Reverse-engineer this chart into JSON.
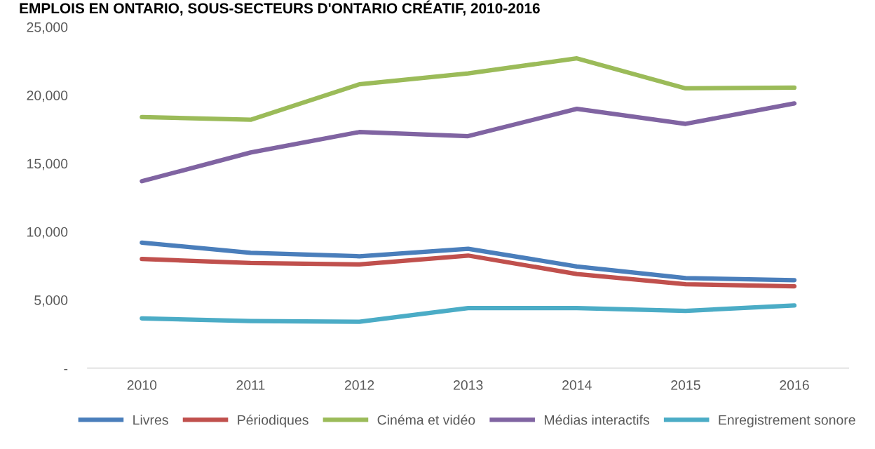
{
  "chart_data": {
    "type": "line",
    "title": "EMPLOIS EN ONTARIO, SOUS-SECTEURS D'ONTARIO CRÉATIF, 2010-2016",
    "categories": [
      "2010",
      "2011",
      "2012",
      "2013",
      "2014",
      "2015",
      "2016"
    ],
    "series": [
      {
        "name": "Livres",
        "color": "#4a7ebb",
        "values": [
          9200,
          8450,
          8200,
          8750,
          7450,
          6600,
          6450
        ]
      },
      {
        "name": "Périodiques",
        "color": "#c0504d",
        "values": [
          8000,
          7700,
          7600,
          8250,
          6900,
          6150,
          6000
        ]
      },
      {
        "name": "Cinéma et vidéo",
        "color": "#9bbb59",
        "values": [
          18400,
          18200,
          20800,
          21600,
          22700,
          20500,
          20550
        ]
      },
      {
        "name": "Médias interactifs",
        "color": "#8064a2",
        "values": [
          13700,
          15800,
          17300,
          17000,
          19000,
          17900,
          19400
        ]
      },
      {
        "name": "Enregistrement sonore",
        "color": "#4bacc6",
        "values": [
          3650,
          3450,
          3400,
          4400,
          4400,
          4200,
          4600
        ]
      }
    ],
    "ylim": [
      0,
      25000
    ],
    "yticks": [
      {
        "value": 0,
        "label": "-"
      },
      {
        "value": 5000,
        "label": "5,000"
      },
      {
        "value": 10000,
        "label": "10,000"
      },
      {
        "value": 15000,
        "label": "15,000"
      },
      {
        "value": 20000,
        "label": "20,000"
      },
      {
        "value": 25000,
        "label": "25,000"
      }
    ],
    "grid": false,
    "legend": "bottom",
    "marker": "none",
    "line_style": "solid"
  }
}
